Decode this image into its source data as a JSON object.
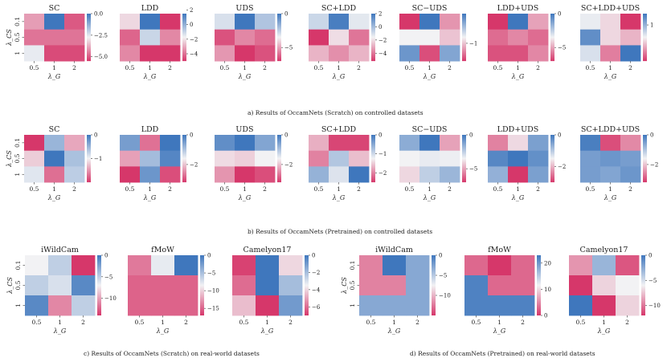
{
  "captions": {
    "a": "a) Results of OccamNets (Scratch) on controlled datasets",
    "b": "b) Results of OccamNets (Pretrained) on controlled datasets",
    "c": "c) Results of OccamNets (Scratch) on real-world datasets",
    "d": "d) Results of OccamNets (Pretrained) on real-world datasets"
  },
  "colors": {
    "low": "#d6376a",
    "mid": "#f2f2f4",
    "high": "#3f77bd"
  },
  "chart_data": [
    {
      "type": "heatmap",
      "title": "SC",
      "xlabel": "λ_G",
      "ylabel": "λ_CS",
      "xticks": [
        "0.5",
        "1",
        "2"
      ],
      "yticks": [
        "0.1",
        "0.5",
        "1"
      ],
      "values": [
        [
          -4.0,
          0.0,
          -5.0
        ],
        [
          -4.6,
          -4.6,
          -4.6
        ],
        [
          -2.6,
          -5.2,
          -5.2
        ]
      ],
      "range": [
        -5.5,
        0
      ],
      "colorbar_ticks": [
        "0.0",
        "−2.5",
        "−5.0"
      ],
      "colorbar_values": [
        0,
        -2.5,
        -5.0
      ]
    },
    {
      "type": "heatmap",
      "title": "LDD",
      "xlabel": "λ_G",
      "ylabel": "",
      "xticks": [
        "0.5",
        "1",
        "2"
      ],
      "yticks": [],
      "values": [
        [
          -2.2,
          1.5,
          -5.0
        ],
        [
          -4.2,
          -1.0,
          -3.6
        ],
        [
          -3.6,
          -5.0,
          -5.0
        ]
      ],
      "range": [
        -5,
        1.5
      ],
      "colorbar_ticks": [
        "2",
        "0",
        "−2",
        "−4"
      ],
      "colorbar_values": [
        2,
        0,
        -2,
        -4
      ]
    },
    {
      "type": "heatmap",
      "title": "UDS",
      "xlabel": "λ_G",
      "ylabel": "",
      "xticks": [
        "0.5",
        "1",
        "2"
      ],
      "yticks": [],
      "values": [
        [
          -3.0,
          0.0,
          -2.2
        ],
        [
          -6.5,
          -5.5,
          -6.0
        ],
        [
          -5.2,
          -7.0,
          -6.5
        ]
      ],
      "range": [
        -7,
        0
      ],
      "colorbar_ticks": [
        "0",
        "−5"
      ],
      "colorbar_values": [
        0,
        -5
      ]
    },
    {
      "type": "heatmap",
      "title": "SC+LDD",
      "xlabel": "λ_G",
      "ylabel": "",
      "xticks": [
        "0.5",
        "1",
        "2"
      ],
      "yticks": [],
      "values": [
        [
          -0.8,
          1.8,
          -1.3
        ],
        [
          -5.2,
          -2.0,
          -4.0
        ],
        [
          -2.8,
          -3.5,
          -2.8
        ]
      ],
      "range": [
        -5.2,
        2
      ],
      "colorbar_ticks": [
        "2",
        "0",
        "−2",
        "−4"
      ],
      "colorbar_values": [
        2,
        0,
        -2,
        -4
      ]
    },
    {
      "type": "heatmap",
      "title": "SC−UDS",
      "xlabel": "λ_G",
      "ylabel": "",
      "xticks": [
        "0.5",
        "1",
        "2"
      ],
      "yticks": [],
      "values": [
        [
          -1.6,
          0.0,
          -1.2
        ],
        [
          -0.8,
          -0.8,
          -1.0
        ],
        [
          -0.2,
          -1.5,
          -0.3
        ]
      ],
      "range": [
        -1.6,
        0
      ],
      "colorbar_ticks": [
        "−1"
      ],
      "colorbar_values": [
        -1
      ]
    },
    {
      "type": "heatmap",
      "title": "LDD+UDS",
      "xlabel": "λ_G",
      "ylabel": "",
      "xticks": [
        "0.5",
        "1",
        "2"
      ],
      "yticks": [],
      "values": [
        [
          -7.0,
          0.0,
          -5.0
        ],
        [
          -6.0,
          -5.5,
          -6.0
        ],
        [
          -6.5,
          -6.5,
          -5.5
        ]
      ],
      "range": [
        -7,
        0
      ],
      "colorbar_ticks": [
        "0",
        "−5"
      ],
      "colorbar_values": [
        0,
        -5
      ]
    },
    {
      "type": "heatmap",
      "title": "SC+LDD+UDS",
      "xlabel": "λ_G",
      "ylabel": "",
      "xticks": [
        "0.5",
        "1",
        "2"
      ],
      "yticks": [],
      "values": [
        [
          0.5,
          0.3,
          -0.6
        ],
        [
          1.3,
          0.3,
          0.1
        ],
        [
          0.6,
          -0.2,
          1.5
        ]
      ],
      "range": [
        -0.6,
        1.5
      ],
      "colorbar_ticks": [
        "1"
      ],
      "colorbar_values": [
        1
      ]
    },
    {
      "type": "heatmap",
      "title": "SC",
      "xlabel": "λ_G",
      "ylabel": "λ_CS",
      "xticks": [
        "0.5",
        "1",
        "2"
      ],
      "yticks": [
        "0.1",
        "0.5",
        "1"
      ],
      "values": [
        [
          -2.0,
          -0.5,
          -1.4
        ],
        [
          -1.2,
          0.0,
          -0.6
        ],
        [
          -0.9,
          -1.7,
          -0.7
        ]
      ],
      "range": [
        -2,
        0
      ],
      "colorbar_ticks": [
        "0",
        "−1"
      ],
      "colorbar_values": [
        0,
        -1
      ]
    },
    {
      "type": "heatmap",
      "title": "LDD",
      "xlabel": "λ_G",
      "ylabel": "",
      "xticks": [
        "0.5",
        "1",
        "2"
      ],
      "yticks": [],
      "values": [
        [
          -0.5,
          -2.7,
          0.0
        ],
        [
          -2.3,
          -0.9,
          -0.2
        ],
        [
          -3.2,
          -0.4,
          -3.0
        ]
      ],
      "range": [
        -3.2,
        0
      ],
      "colorbar_ticks": [
        "0",
        "−2"
      ],
      "colorbar_values": [
        0,
        -2
      ]
    },
    {
      "type": "heatmap",
      "title": "UDS",
      "xlabel": "λ_G",
      "ylabel": "",
      "xticks": [
        "0.5",
        "1",
        "2"
      ],
      "yticks": [],
      "values": [
        [
          -0.3,
          0.0,
          -0.6
        ],
        [
          -1.8,
          -1.9,
          -1.6
        ],
        [
          -2.4,
          -3.2,
          -3.0
        ]
      ],
      "range": [
        -3.2,
        0
      ],
      "colorbar_ticks": [
        "0",
        "−2"
      ],
      "colorbar_values": [
        0,
        -2
      ]
    },
    {
      "type": "heatmap",
      "title": "SC+LDD",
      "xlabel": "λ_G",
      "ylabel": "",
      "xticks": [
        "0.5",
        "1",
        "2"
      ],
      "yticks": [],
      "values": [
        [
          -1.7,
          -2.4,
          -2.4
        ],
        [
          -2.0,
          -0.8,
          -1.6
        ],
        [
          -0.6,
          -1.1,
          0.0
        ]
      ],
      "range": [
        -2.5,
        0
      ],
      "colorbar_ticks": [
        "0",
        "−1",
        "−2"
      ],
      "colorbar_values": [
        0,
        -1,
        -2
      ]
    },
    {
      "type": "heatmap",
      "title": "SC−UDS",
      "xlabel": "λ_G",
      "ylabel": "",
      "xticks": [
        "0.5",
        "1",
        "2"
      ],
      "yticks": [],
      "values": [
        [
          -1.5,
          0.0,
          -5.0
        ],
        [
          -3.5,
          -3.3,
          -3.4
        ],
        [
          -4.0,
          -2.5,
          -1.8
        ]
      ],
      "range": [
        -7,
        0
      ],
      "colorbar_ticks": [
        "0",
        "−5"
      ],
      "colorbar_values": [
        0,
        -5
      ]
    },
    {
      "type": "heatmap",
      "title": "LDD+UDS",
      "xlabel": "λ_G",
      "ylabel": "",
      "xticks": [
        "0.5",
        "1",
        "2"
      ],
      "yticks": [],
      "values": [
        [
          -2.4,
          -1.7,
          -0.5
        ],
        [
          -0.2,
          0.0,
          -0.3
        ],
        [
          -0.7,
          -3.0,
          -0.5
        ]
      ],
      "range": [
        -3,
        0
      ],
      "colorbar_ticks": [
        "0",
        "−2"
      ],
      "colorbar_values": [
        0,
        -2
      ]
    },
    {
      "type": "heatmap",
      "title": "SC+LDD+UDS",
      "xlabel": "λ_G",
      "ylabel": "",
      "xticks": [
        "0.5",
        "1",
        "2"
      ],
      "yticks": [],
      "values": [
        [
          -0.1,
          -3.0,
          -2.5
        ],
        [
          -0.5,
          -0.4,
          -0.5
        ],
        [
          -0.5,
          -0.6,
          -0.4
        ]
      ],
      "range": [
        -3.2,
        0
      ],
      "colorbar_ticks": [
        "0",
        "−2"
      ],
      "colorbar_values": [
        0,
        -2
      ]
    },
    {
      "type": "heatmap",
      "title": "iWildCam",
      "xlabel": "λ_G",
      "ylabel": "λ_CS",
      "xticks": [
        "0.5",
        "1",
        "2"
      ],
      "yticks": [
        "0.1",
        "0.5",
        "1"
      ],
      "values": [
        [
          -7,
          -5,
          -14
        ],
        [
          -5,
          -6,
          -1
        ],
        [
          -1,
          -11,
          -5
        ]
      ],
      "range": [
        -14,
        0
      ],
      "colorbar_ticks": [
        "0",
        "−5",
        "−10"
      ],
      "colorbar_values": [
        0,
        -5,
        -10
      ]
    },
    {
      "type": "heatmap",
      "title": "fMoW",
      "xlabel": "λ_G",
      "ylabel": "",
      "xticks": [
        "0.5",
        "1",
        "2"
      ],
      "yticks": [],
      "values": [
        [
          -14,
          -8,
          0
        ],
        [
          -15,
          -15,
          -15
        ],
        [
          -15,
          -15,
          -15
        ]
      ],
      "range": [
        -17,
        0
      ],
      "colorbar_ticks": [
        "0",
        "−5",
        "−10",
        "−15"
      ],
      "colorbar_values": [
        0,
        -5,
        -10,
        -15
      ]
    },
    {
      "type": "heatmap",
      "title": "Camelyon17",
      "xlabel": "λ_G",
      "ylabel": "",
      "xticks": [
        "0.5",
        "1",
        "2"
      ],
      "yticks": [],
      "values": [
        [
          -6.8,
          0,
          -4.0
        ],
        [
          -6.0,
          0,
          -2.0
        ],
        [
          -4.5,
          -7.0,
          -1.0
        ]
      ],
      "range": [
        -7,
        0
      ],
      "colorbar_ticks": [
        "0",
        "−2",
        "−4",
        "−6"
      ],
      "colorbar_values": [
        0,
        -2,
        -4,
        -6
      ]
    },
    {
      "type": "heatmap",
      "title": "iWildCam",
      "xlabel": "λ_G",
      "ylabel": "λ_CS",
      "xticks": [
        "0.5",
        "1",
        "2"
      ],
      "yticks": [
        "0.1",
        "0.5",
        "1"
      ],
      "values": [
        [
          -12,
          0,
          -3
        ],
        [
          -12,
          -12,
          -3
        ],
        [
          -3,
          -3,
          -3
        ]
      ],
      "range": [
        -15,
        0
      ],
      "colorbar_ticks": [
        "0",
        "−5",
        "−10"
      ],
      "colorbar_values": [
        0,
        -5,
        -10
      ]
    },
    {
      "type": "heatmap",
      "title": "fMoW",
      "xlabel": "λ_G",
      "ylabel": "",
      "xticks": [
        "0.5",
        "1",
        "2"
      ],
      "yticks": [],
      "values": [
        [
          3,
          0,
          3
        ],
        [
          22,
          3,
          3
        ],
        [
          22,
          22,
          22
        ]
      ],
      "range": [
        0,
        23
      ],
      "colorbar_ticks": [
        "0",
        "10",
        "20"
      ],
      "colorbar_values": [
        0,
        10,
        20
      ]
    },
    {
      "type": "heatmap",
      "title": "Camelyon17",
      "xlabel": "λ_G",
      "ylabel": "",
      "xticks": [
        "0.5",
        "1",
        "2"
      ],
      "yticks": [],
      "values": [
        [
          -9,
          -3,
          -11
        ],
        [
          -12,
          -7,
          -6
        ],
        [
          0,
          -12,
          -7
        ]
      ],
      "range": [
        -12,
        0
      ],
      "colorbar_ticks": [
        "0",
        "−5",
        "−10"
      ],
      "colorbar_values": [
        0,
        -5,
        -10
      ]
    }
  ]
}
